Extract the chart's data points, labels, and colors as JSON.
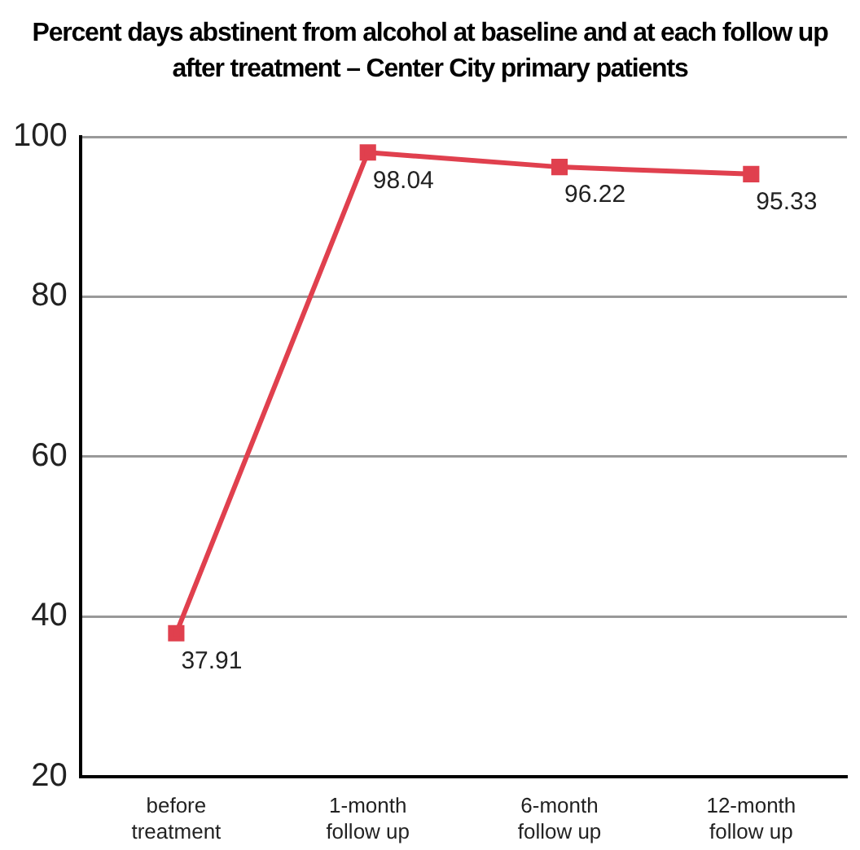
{
  "chart_data": {
    "type": "line",
    "title": "Percent days abstinent from alcohol at baseline and at each follow up after treatment – Center City primary patients",
    "categories": [
      "before treatment",
      "1-month follow up",
      "6-month follow up",
      "12-month follow up"
    ],
    "series": [
      {
        "color": "#e0404e",
        "values": [
          37.91,
          98.04,
          96.22,
          95.33
        ]
      }
    ],
    "ylim": [
      20,
      100
    ],
    "yticks": [
      20,
      40,
      60,
      80,
      100
    ],
    "grid": "y",
    "marker": "square",
    "data_labels": true,
    "legend": false
  }
}
